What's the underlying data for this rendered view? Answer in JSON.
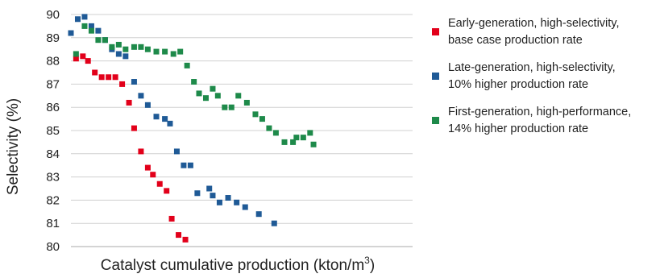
{
  "chart_data": {
    "type": "scatter",
    "title": "",
    "xlabel": "Catalyst cumulative production (kton/m",
    "xlabel_superscript": "3",
    "xlabel_suffix": ")",
    "ylabel": "Selectivity (%)",
    "ylim": [
      80,
      90
    ],
    "yticks": [
      "80",
      "81",
      "82",
      "83",
      "84",
      "85",
      "86",
      "87",
      "88",
      "89",
      "90"
    ],
    "xlim": [
      0,
      100
    ],
    "x_tick_labels": false,
    "grid": "horizontal",
    "legend_position": "right",
    "series": [
      {
        "name": "Early-generation, high-selectivity, base case production rate",
        "legend_lines": [
          "Early-generation, high-selectivity,",
          "base case production rate"
        ],
        "color": "#e2001a",
        "points": [
          {
            "x": 1.5,
            "y": 88.1
          },
          {
            "x": 3.5,
            "y": 88.2
          },
          {
            "x": 5,
            "y": 88.0
          },
          {
            "x": 7,
            "y": 87.5
          },
          {
            "x": 9,
            "y": 87.3
          },
          {
            "x": 11,
            "y": 87.3
          },
          {
            "x": 13,
            "y": 87.3
          },
          {
            "x": 15,
            "y": 87.0
          },
          {
            "x": 17,
            "y": 86.2
          },
          {
            "x": 18.5,
            "y": 85.1
          },
          {
            "x": 20.5,
            "y": 84.1
          },
          {
            "x": 22.5,
            "y": 83.4
          },
          {
            "x": 24,
            "y": 83.1
          },
          {
            "x": 26,
            "y": 82.7
          },
          {
            "x": 28,
            "y": 82.4
          },
          {
            "x": 29.5,
            "y": 81.2
          },
          {
            "x": 31.5,
            "y": 80.5
          },
          {
            "x": 33.5,
            "y": 80.3
          }
        ]
      },
      {
        "name": "Late-generation, high-selectivity, 10% higher production rate",
        "legend_lines": [
          "Late-generation, high-selectivity,",
          "10% higher production rate"
        ],
        "color": "#1f5a96",
        "points": [
          {
            "x": 0,
            "y": 89.2
          },
          {
            "x": 2,
            "y": 89.8
          },
          {
            "x": 4,
            "y": 89.9
          },
          {
            "x": 6,
            "y": 89.5
          },
          {
            "x": 8,
            "y": 89.3
          },
          {
            "x": 10,
            "y": 88.9
          },
          {
            "x": 12,
            "y": 88.5
          },
          {
            "x": 14,
            "y": 88.3
          },
          {
            "x": 16,
            "y": 88.2
          },
          {
            "x": 18.5,
            "y": 87.1
          },
          {
            "x": 20.5,
            "y": 86.5
          },
          {
            "x": 22.5,
            "y": 86.1
          },
          {
            "x": 25,
            "y": 85.6
          },
          {
            "x": 27.5,
            "y": 85.5
          },
          {
            "x": 29,
            "y": 85.3
          },
          {
            "x": 31,
            "y": 84.1
          },
          {
            "x": 33,
            "y": 83.5
          },
          {
            "x": 35,
            "y": 83.5
          },
          {
            "x": 37,
            "y": 82.3
          },
          {
            "x": 40.5,
            "y": 82.5
          },
          {
            "x": 41.5,
            "y": 82.2
          },
          {
            "x": 43.5,
            "y": 81.9
          },
          {
            "x": 46,
            "y": 82.1
          },
          {
            "x": 48.5,
            "y": 81.9
          },
          {
            "x": 51,
            "y": 81.7
          },
          {
            "x": 55,
            "y": 81.4
          },
          {
            "x": 59.5,
            "y": 81.0
          }
        ]
      },
      {
        "name": "First-generation, high-performance, 14% higher production rate",
        "legend_lines": [
          "First-generation, high-performance,",
          "14% higher production rate"
        ],
        "color": "#1e8a4a",
        "points": [
          {
            "x": 1.5,
            "y": 88.3
          },
          {
            "x": 4,
            "y": 89.5
          },
          {
            "x": 6,
            "y": 89.3
          },
          {
            "x": 8,
            "y": 88.9
          },
          {
            "x": 10,
            "y": 88.9
          },
          {
            "x": 12,
            "y": 88.6
          },
          {
            "x": 14,
            "y": 88.7
          },
          {
            "x": 16,
            "y": 88.5
          },
          {
            "x": 18.5,
            "y": 88.6
          },
          {
            "x": 20.5,
            "y": 88.6
          },
          {
            "x": 22.5,
            "y": 88.5
          },
          {
            "x": 25,
            "y": 88.4
          },
          {
            "x": 27.5,
            "y": 88.4
          },
          {
            "x": 30,
            "y": 88.3
          },
          {
            "x": 32,
            "y": 88.4
          },
          {
            "x": 34,
            "y": 87.8
          },
          {
            "x": 36,
            "y": 87.1
          },
          {
            "x": 37.5,
            "y": 86.6
          },
          {
            "x": 39.5,
            "y": 86.4
          },
          {
            "x": 41.5,
            "y": 86.8
          },
          {
            "x": 43,
            "y": 86.5
          },
          {
            "x": 45,
            "y": 86.0
          },
          {
            "x": 47,
            "y": 86.0
          },
          {
            "x": 49,
            "y": 86.5
          },
          {
            "x": 51.5,
            "y": 86.2
          },
          {
            "x": 54,
            "y": 85.7
          },
          {
            "x": 56,
            "y": 85.5
          },
          {
            "x": 58,
            "y": 85.1
          },
          {
            "x": 60,
            "y": 84.9
          },
          {
            "x": 62.5,
            "y": 84.5
          },
          {
            "x": 65,
            "y": 84.5
          },
          {
            "x": 66,
            "y": 84.7
          },
          {
            "x": 68,
            "y": 84.7
          },
          {
            "x": 70,
            "y": 84.9
          },
          {
            "x": 71,
            "y": 84.4
          }
        ]
      }
    ]
  }
}
